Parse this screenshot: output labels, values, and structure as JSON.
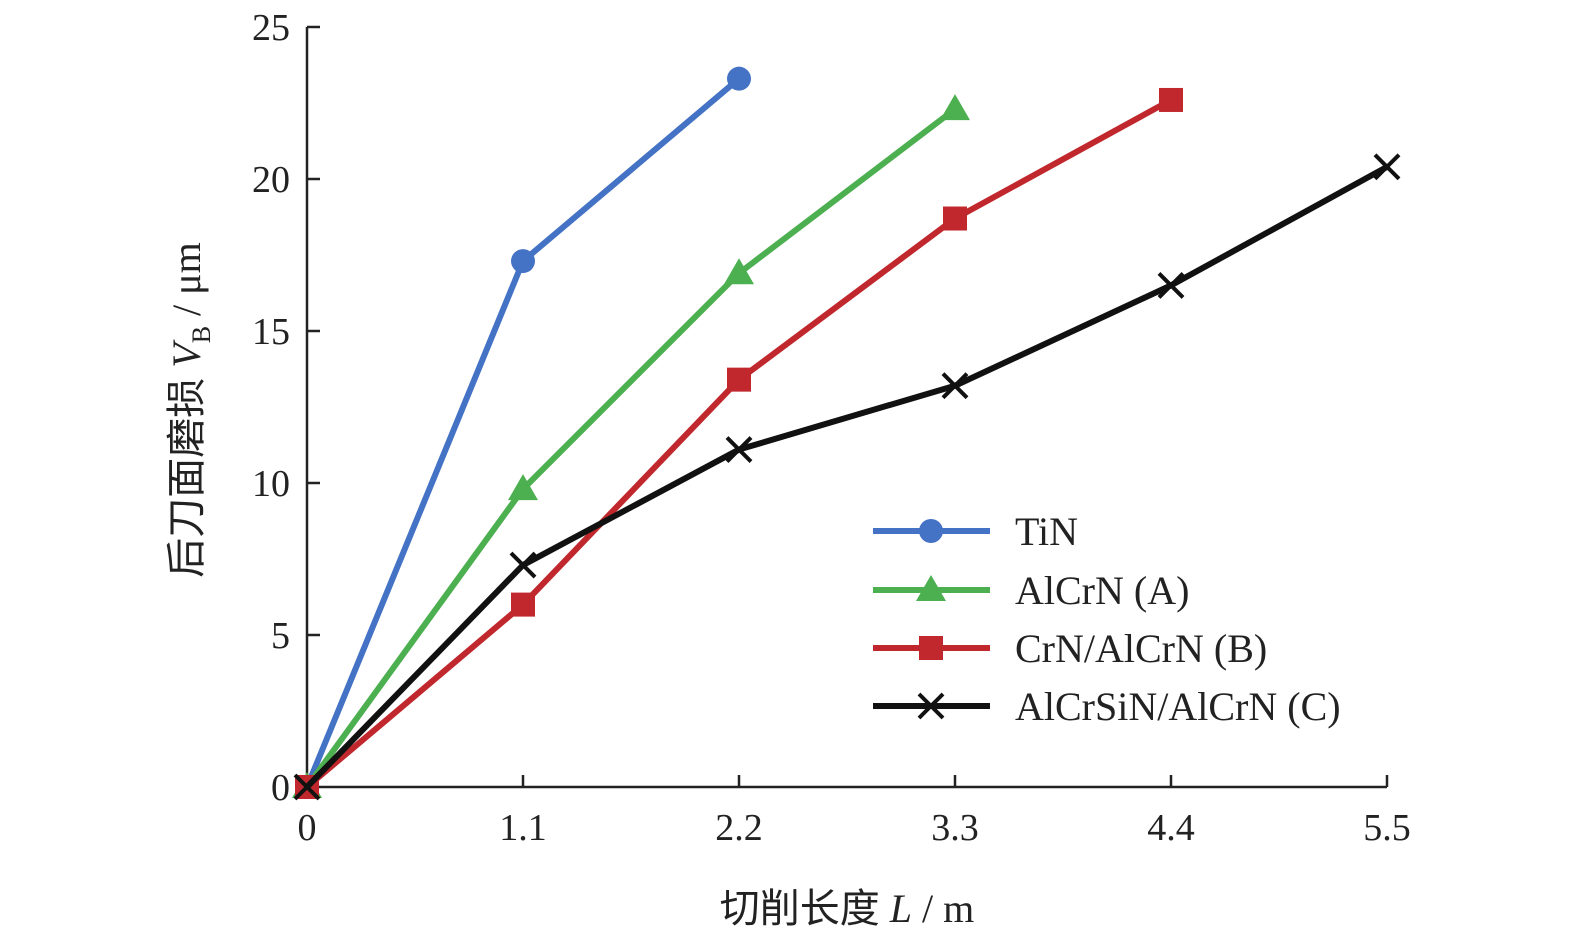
{
  "chart_data": {
    "type": "line",
    "xlabel_parts": [
      "切削长度 ",
      "L",
      " / m"
    ],
    "ylabel_parts": [
      "后刀面磨损 ",
      "V",
      "B",
      " / μm"
    ],
    "x_ticks": [
      "0",
      "1.1",
      "2.2",
      "3.3",
      "4.4",
      "5.5"
    ],
    "y_ticks": [
      "0",
      "5",
      "10",
      "15",
      "20",
      "25"
    ],
    "xlim": [
      0,
      5.5
    ],
    "ylim": [
      0,
      25
    ],
    "grid": false,
    "legend_position": "right",
    "series": [
      {
        "name": "TiN",
        "color": "#4472c4",
        "marker": "circle",
        "x": [
          0,
          1.1,
          2.2
        ],
        "y": [
          0,
          17.3,
          23.3
        ]
      },
      {
        "name": "AlCrN (A)",
        "color": "#4caf50",
        "marker": "triangle",
        "x": [
          0,
          1.1,
          2.2,
          3.3
        ],
        "y": [
          0,
          9.8,
          16.9,
          22.3
        ]
      },
      {
        "name": "CrN/AlCrN (B)",
        "color": "#c0282d",
        "marker": "square",
        "x": [
          0,
          1.1,
          2.2,
          3.3,
          4.4
        ],
        "y": [
          0,
          6.0,
          13.4,
          18.7,
          22.6
        ]
      },
      {
        "name": "AlCrSiN/AlCrN (C)",
        "color": "#111111",
        "marker": "x",
        "x": [
          0,
          1.1,
          2.2,
          3.3,
          4.4,
          5.5
        ],
        "y": [
          0,
          7.3,
          11.1,
          13.2,
          16.5,
          20.4
        ]
      }
    ]
  }
}
